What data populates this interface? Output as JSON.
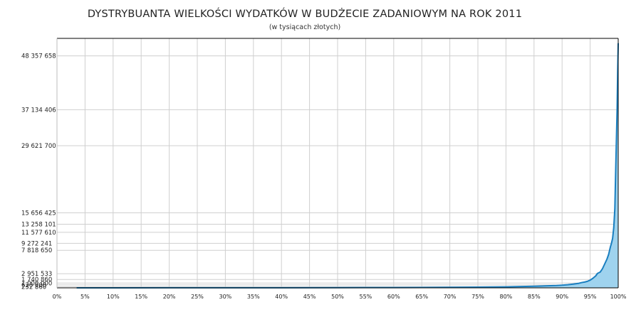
{
  "chart_data": {
    "type": "area",
    "title": "DYSTRYBUANTA WIELKOŚCI WYDATKÓW W BUDŻECIE ZADANIOWYM NA ROK 2011",
    "subtitle": "(w tysiącach złotych)",
    "xlabel": "",
    "ylabel": "",
    "x_ticks": [
      "0%",
      "5%",
      "10%",
      "15%",
      "20%",
      "25%",
      "30%",
      "35%",
      "40%",
      "45%",
      "50%",
      "55%",
      "60%",
      "65%",
      "70%",
      "75%",
      "80%",
      "85%",
      "90%",
      "95%",
      "100%"
    ],
    "y_ticks": [
      "232 860",
      "620 000",
      "1 000 000",
      "1 740 860",
      "2 951 533",
      "7 818 650",
      "9 272 241",
      "11 577 610",
      "13 258 101",
      "15 656 425",
      "29 621 700",
      "37 134 406",
      "48 357 658"
    ],
    "ylim": [
      0,
      52000000
    ],
    "xlim": [
      0,
      100
    ],
    "grid": true,
    "line_color": "#1a7fc0",
    "fill_color": "#9fd3ee",
    "series": [
      {
        "x": [
          3.5,
          10,
          20,
          30,
          40,
          50,
          60,
          65,
          70,
          75,
          80,
          82,
          85,
          87,
          89,
          90,
          91,
          92,
          93,
          93.5,
          94,
          94.5,
          95,
          95.5,
          96,
          96.3,
          96.8,
          97.2,
          97.6,
          98,
          98.3,
          98.6,
          98.8,
          99.0,
          99.2,
          99.4,
          99.6,
          99.8,
          99.9,
          100
        ],
        "y": [
          0,
          5000,
          10000,
          15000,
          25000,
          40000,
          60000,
          80000,
          110000,
          150000,
          210000,
          260000,
          330000,
          400000,
          480000,
          550000,
          650000,
          780000,
          950000,
          1100000,
          1200000,
          1350000,
          1600000,
          2000000,
          2500000,
          3000000,
          3300000,
          4000000,
          5000000,
          6000000,
          7000000,
          8500000,
          9300000,
          10300000,
          12500000,
          16500000,
          27000000,
          37000000,
          45000000,
          51000000
        ]
      }
    ]
  }
}
